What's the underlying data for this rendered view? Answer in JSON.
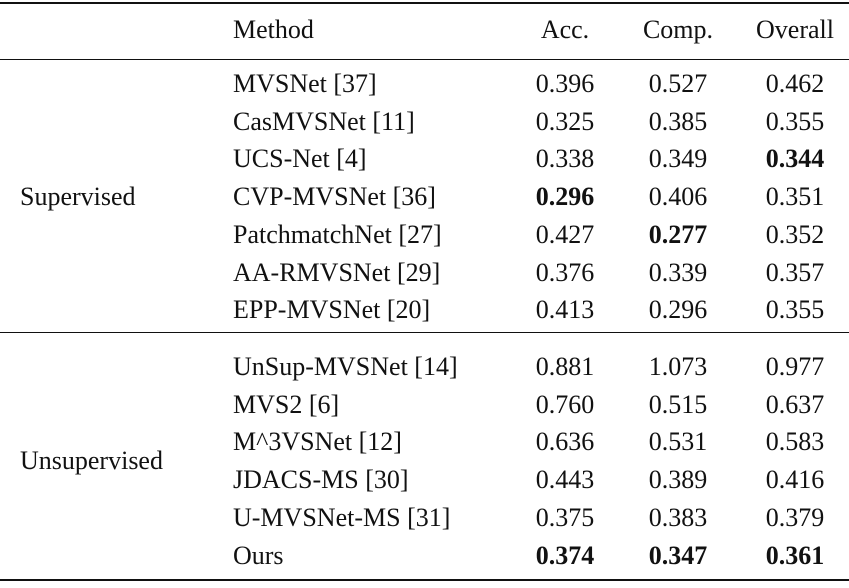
{
  "table": {
    "header": [
      "Method",
      "Acc.",
      "Comp.",
      "Overall"
    ],
    "groups": [
      {
        "label": "Supervised",
        "rows": [
          [
            "MVSNet [37]",
            "0.396",
            "0.527",
            "0.462"
          ],
          [
            "CasMVSNet [11]",
            "0.325",
            "0.385",
            "0.355"
          ],
          [
            "UCS-Net [4]",
            "0.338",
            "0.349",
            "0.344"
          ],
          [
            "CVP-MVSNet [36]",
            "0.296",
            "0.406",
            "0.351"
          ],
          [
            "PatchmatchNet [27]",
            "0.427",
            "0.277",
            "0.352"
          ],
          [
            "AA-RMVSNet [29]",
            "0.376",
            "0.339",
            "0.357"
          ],
          [
            "EPP-MVSNet [20]",
            "0.413",
            "0.296",
            "0.355"
          ]
        ],
        "bold": [
          [
            2,
            3
          ],
          [
            3,
            1
          ],
          [
            4,
            2
          ]
        ]
      },
      {
        "label": "Unsupervised",
        "rows": [
          [
            "UnSup-MVSNet [14]",
            "0.881",
            "1.073",
            "0.977"
          ],
          [
            "MVS2 [6]",
            "0.760",
            "0.515",
            "0.637"
          ],
          [
            "M^3VSNet [12]",
            "0.636",
            "0.531",
            "0.583"
          ],
          [
            "JDACS-MS [30]",
            "0.443",
            "0.389",
            "0.416"
          ],
          [
            "U-MVSNet-MS [31]",
            "0.375",
            "0.383",
            "0.379"
          ],
          [
            "Ours",
            "0.374",
            "0.347",
            "0.361"
          ]
        ],
        "bold": [
          [
            5,
            1
          ],
          [
            5,
            2
          ],
          [
            5,
            3
          ]
        ]
      }
    ]
  }
}
